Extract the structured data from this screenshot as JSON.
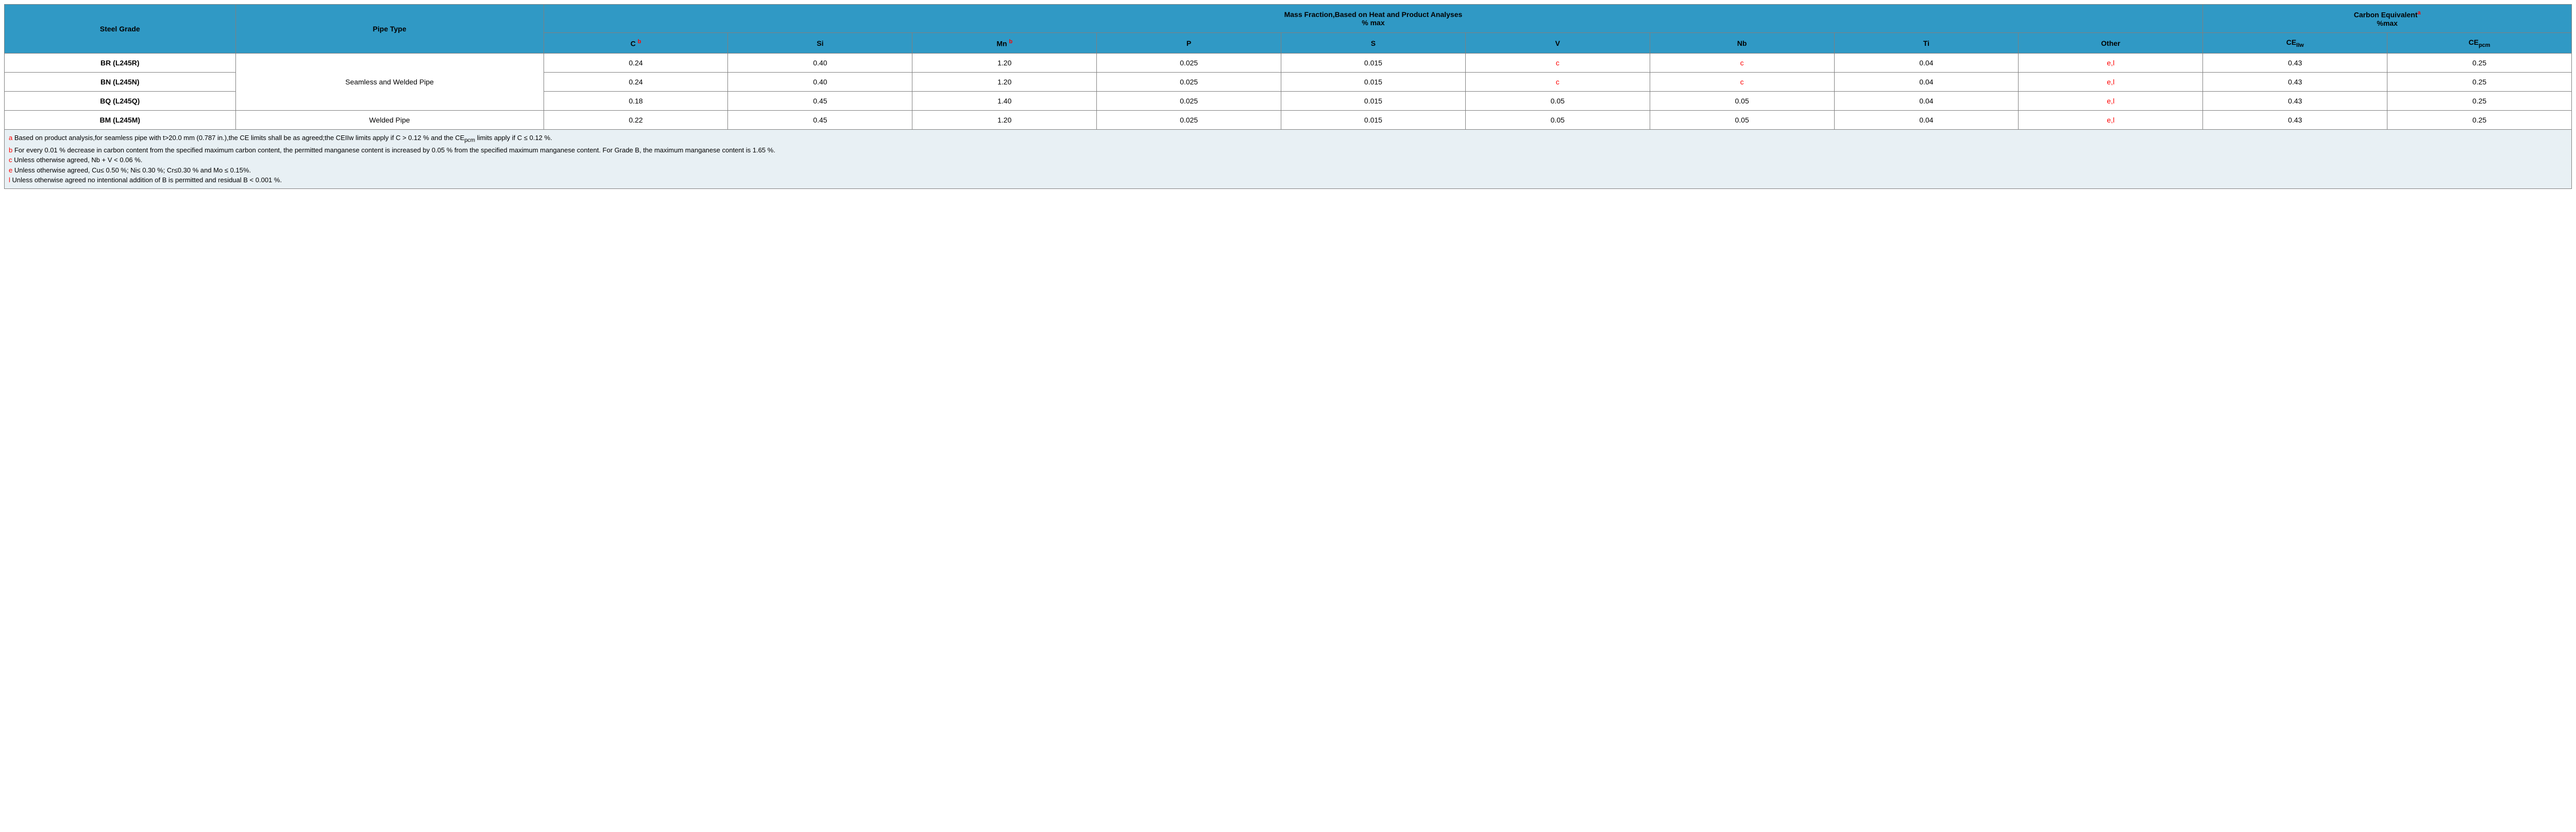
{
  "header": {
    "steel_grade": "Steel Grade",
    "pipe_type": "Pipe Type",
    "mass_fraction_line1": "Mass Fraction,Based on Heat and Product Analyses",
    "mass_fraction_line2": "% max",
    "carbon_equiv_line1": "Carbon Equivalent",
    "carbon_equiv_line2": "%max",
    "carbon_equiv_sup": "a",
    "cols": {
      "c": "C",
      "c_sup": "b",
      "si": "Si",
      "mn": "Mn",
      "mn_sup": "b",
      "p": "P",
      "s": "S",
      "v": "V",
      "nb": "Nb",
      "ti": "Ti",
      "other": "Other",
      "ceiiw": "CE",
      "ceiiw_sub": "IIw",
      "cepcm": "CE",
      "cepcm_sub": "pcm"
    }
  },
  "pipe_types": {
    "seamless_welded": "Seamless and Welded Pipe",
    "welded": "Welded Pipe"
  },
  "rows": [
    {
      "grade": "BR (L245R)",
      "c": "0.24",
      "si": "0.40",
      "mn": "1.20",
      "p": "0.025",
      "s": "0.015",
      "v": "c",
      "v_red": true,
      "nb": "c",
      "nb_red": true,
      "ti": "0.04",
      "other": "e,l",
      "other_red": true,
      "ceiiw": "0.43",
      "cepcm": "0.25"
    },
    {
      "grade": "BN (L245N)",
      "c": "0.24",
      "si": "0.40",
      "mn": "1.20",
      "p": "0.025",
      "s": "0.015",
      "v": "c",
      "v_red": true,
      "nb": "c",
      "nb_red": true,
      "ti": "0.04",
      "other": "e,l",
      "other_red": true,
      "ceiiw": "0.43",
      "cepcm": "0.25"
    },
    {
      "grade": "BQ (L245Q)",
      "c": "0.18",
      "si": "0.45",
      "mn": "1.40",
      "p": "0.025",
      "s": "0.015",
      "v": "0.05",
      "v_red": false,
      "nb": "0.05",
      "nb_red": false,
      "ti": "0.04",
      "other": "e,l",
      "other_red": true,
      "ceiiw": "0.43",
      "cepcm": "0.25"
    },
    {
      "grade": "BM (L245M)",
      "c": "0.22",
      "si": "0.45",
      "mn": "1.20",
      "p": "0.025",
      "s": "0.015",
      "v": "0.05",
      "v_red": false,
      "nb": "0.05",
      "nb_red": false,
      "ti": "0.04",
      "other": "e,l",
      "other_red": true,
      "ceiiw": "0.43",
      "cepcm": "0.25"
    }
  ],
  "notes": [
    {
      "key": "a",
      "text": " Based on product analysis,for seamless pipe with t>20.0 mm (0.787 in.),the CE limits shall be as agreed;the CEIIw limits apply if C > 0.12 % and the CE",
      "tail_sub": "pcm",
      "tail": " limits apply if C ≤ 0.12 %."
    },
    {
      "key": "b",
      "text": " For every 0.01 % decrease in carbon content from the specified maximum carbon content, the permitted manganese content is increased by 0.05 % from the specified maximum manganese content. For Grade B, the maximum manganese content is 1.65 %."
    },
    {
      "key": "c",
      "text": " Unless otherwise agreed, Nb + V < 0.06 %."
    },
    {
      "key": "e",
      "text": " Unless otherwise agreed, Cu≤ 0.50 %; Ni≤ 0.30 %; Cr≤0.30 % and Mo ≤ 0.15%."
    },
    {
      "key": "l",
      "text": " Unless otherwise agreed no intentional addition of B is permitted and residual B < 0.001 %."
    }
  ],
  "colors": {
    "header_bg": "#3099c5",
    "border": "#808080",
    "notes_bg": "#e8f0f4",
    "footnote_red": "#ff0000"
  }
}
